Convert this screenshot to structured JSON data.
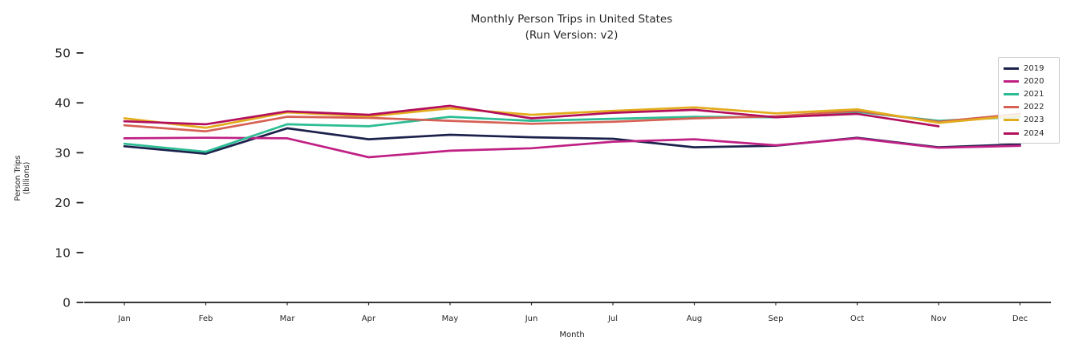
{
  "figure": {
    "title": "Monthly Person Trips in United States",
    "subtitle": "(Run Version: v2)"
  },
  "chart_data": {
    "type": "line",
    "title": "Monthly Person Trips in United States",
    "subtitle": "(Run Version: v2)",
    "xlabel": "Month",
    "ylabel": "Person Trips\n(billions)",
    "categories": [
      "Jan",
      "Feb",
      "Mar",
      "Apr",
      "May",
      "Jun",
      "Jul",
      "Aug",
      "Sep",
      "Oct",
      "Nov",
      "Dec"
    ],
    "yticks": [
      0,
      10,
      20,
      30,
      40,
      50
    ],
    "ylim": [
      0,
      50
    ],
    "grid": false,
    "legend_position": "upper right",
    "series": [
      {
        "name": "2019",
        "color": "#1c214c",
        "values": [
          31.3,
          29.8,
          34.9,
          32.7,
          33.6,
          33.1,
          32.8,
          31.1,
          31.4,
          33.0,
          31.1,
          31.7
        ]
      },
      {
        "name": "2020",
        "color": "#c02084",
        "values": [
          32.9,
          33.0,
          32.9,
          29.1,
          30.4,
          30.9,
          32.2,
          32.7,
          31.5,
          32.9,
          31.0,
          31.4
        ]
      },
      {
        "name": "2021",
        "color": "#2cbd94",
        "values": [
          31.8,
          30.2,
          35.7,
          35.3,
          37.2,
          36.4,
          36.8,
          37.2,
          37.1,
          38.2,
          36.4,
          37.2
        ]
      },
      {
        "name": "2022",
        "color": "#d66053",
        "values": [
          35.5,
          34.3,
          37.2,
          37.0,
          36.4,
          35.8,
          36.2,
          36.9,
          37.3,
          38.4,
          36.2,
          37.8
        ]
      },
      {
        "name": "2023",
        "color": "#e2ac1d",
        "values": [
          36.9,
          35.0,
          38.1,
          37.3,
          38.9,
          37.6,
          38.4,
          39.1,
          37.9,
          38.7,
          36.0,
          37.5
        ]
      },
      {
        "name": "2024",
        "color": "#b30f5c",
        "values": [
          36.3,
          35.7,
          38.3,
          37.6,
          39.4,
          36.9,
          38.0,
          38.6,
          37.1,
          37.8,
          35.3,
          null
        ]
      }
    ]
  }
}
